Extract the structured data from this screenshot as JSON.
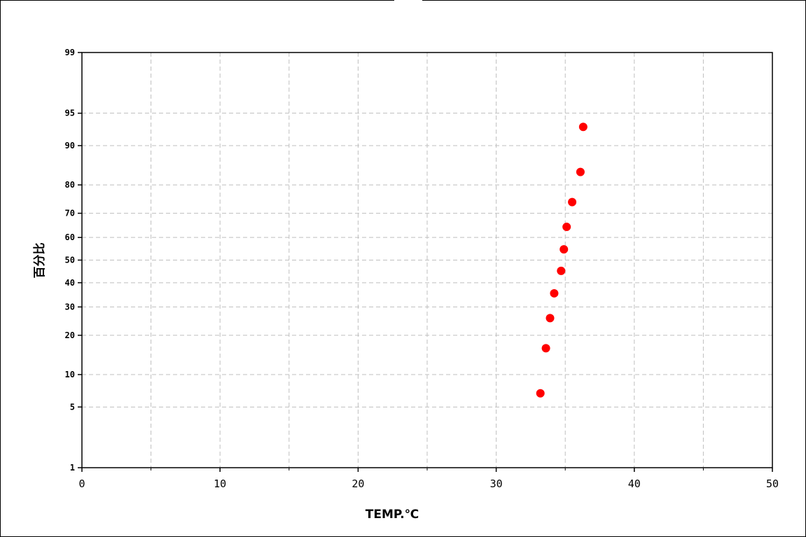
{
  "chart_data": {
    "type": "scatter",
    "title": "",
    "xlabel": "TEMP.℃",
    "ylabel": "百分比",
    "xlim": [
      0,
      50
    ],
    "ylim": [
      1,
      99
    ],
    "y_scale": "probability",
    "grid": true,
    "legend": "none",
    "x_ticks": [
      0,
      10,
      20,
      30,
      40,
      50
    ],
    "x_minor_grid": [
      5,
      15,
      25,
      35,
      45
    ],
    "y_ticks": [
      1,
      5,
      10,
      20,
      30,
      40,
      50,
      60,
      70,
      80,
      90,
      95,
      99
    ],
    "series": [
      {
        "color": "#ff0000",
        "points": [
          {
            "x": 33.2,
            "y": 6.8
          },
          {
            "x": 33.6,
            "y": 16.2
          },
          {
            "x": 33.9,
            "y": 25.8
          },
          {
            "x": 34.2,
            "y": 35.5
          },
          {
            "x": 34.7,
            "y": 45.2
          },
          {
            "x": 34.9,
            "y": 54.8
          },
          {
            "x": 35.1,
            "y": 64.5
          },
          {
            "x": 35.5,
            "y": 74.2
          },
          {
            "x": 36.1,
            "y": 83.8
          },
          {
            "x": 36.3,
            "y": 93.2
          }
        ]
      }
    ]
  }
}
